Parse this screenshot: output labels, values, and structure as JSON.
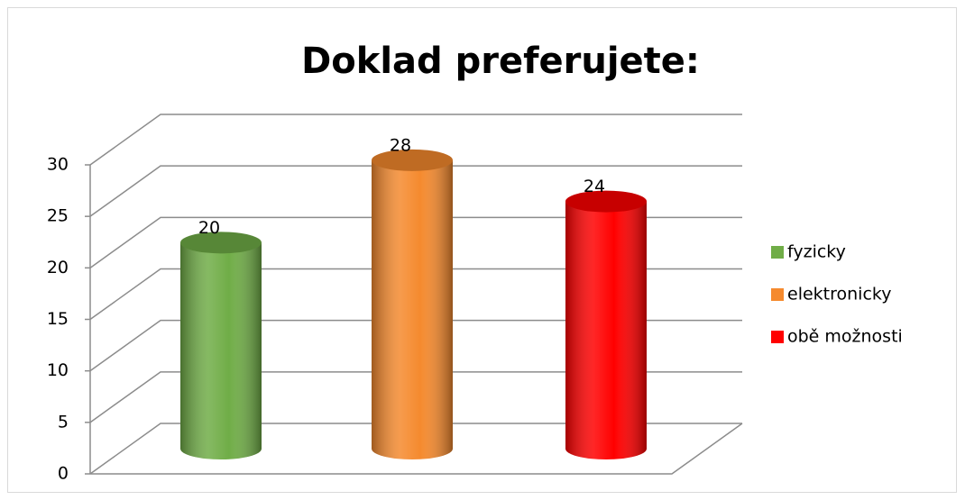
{
  "chart_data": {
    "type": "bar3d",
    "title": "Doklad preferujete:",
    "categories": [
      null
    ],
    "series": [
      {
        "name": "fyzicky",
        "color": "#70ad47",
        "values": [
          20
        ]
      },
      {
        "name": "elektronicky",
        "color": "#f58a2e",
        "values": [
          28
        ]
      },
      {
        "name": "obě možnosti",
        "color": "#ff0000",
        "values": [
          24
        ]
      }
    ],
    "ylim": [
      0,
      30
    ],
    "yticks": [
      0,
      5,
      10,
      15,
      20,
      25,
      30
    ],
    "grid": true,
    "legend": "right"
  }
}
